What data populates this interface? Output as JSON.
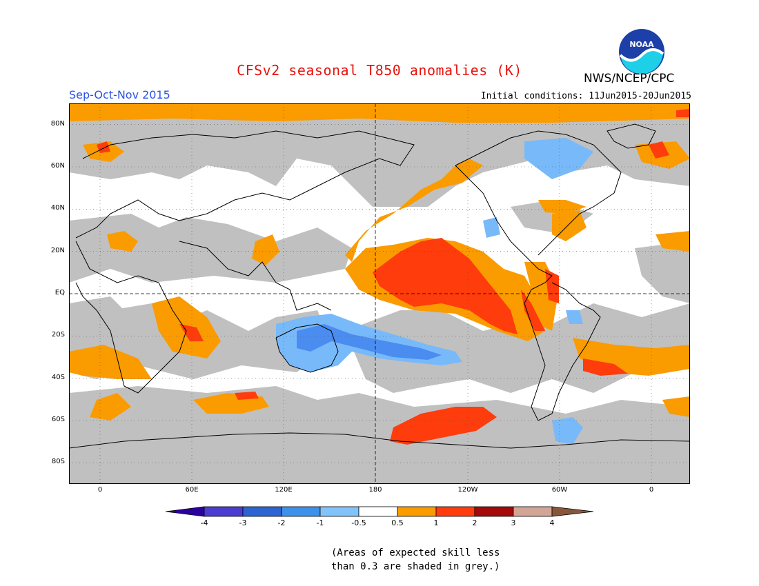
{
  "header": {
    "title": "CFSv2 seasonal T850 anomalies (K)",
    "org": "NWS/NCEP/CPC",
    "logo_text": "NOAA",
    "season": "Sep-Oct-Nov 2015",
    "initial_conditions": "Initial conditions: 11Jun2015-20Jun2015"
  },
  "map": {
    "lat_labels": [
      "80N",
      "60N",
      "40N",
      "20N",
      "EQ",
      "20S",
      "40S",
      "60S",
      "80S"
    ],
    "lon_labels": [
      "0",
      "60E",
      "120E",
      "180",
      "120W",
      "60W",
      "0"
    ],
    "colors": {
      "ocean_white": "#ffffff",
      "skill_grey": "#c0c0c0",
      "orange": "#fa9b00",
      "red_orange": "#ff3c0c",
      "light_blue": "#78b9fa",
      "blue": "#4b8cf0"
    }
  },
  "colorbar": {
    "labels": [
      "-4",
      "-3",
      "-2",
      "-1",
      "-0.5",
      "0.5",
      "1",
      "2",
      "3",
      "4"
    ],
    "colors": [
      "#2d00a0",
      "#4b3cd2",
      "#2d64d2",
      "#3c91eb",
      "#82c3fa",
      "#ffffff",
      "#fa9b00",
      "#ff3c0c",
      "#a50a0a",
      "#d2a596",
      "#87573c"
    ]
  },
  "note": {
    "line1": "(Areas of expected skill less",
    "line2": "than 0.3 are shaded in grey.)"
  }
}
